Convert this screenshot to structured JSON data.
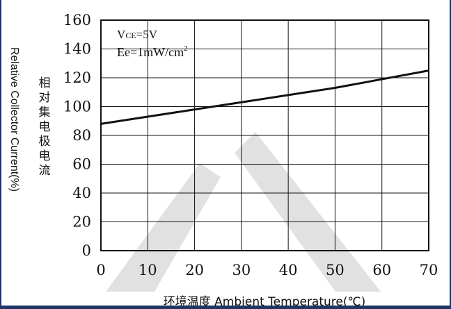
{
  "colors": {
    "frame": "#1f3566",
    "watermark": "#c9c9c9",
    "line": "#111111"
  },
  "chart_data": {
    "type": "line",
    "title": "",
    "xlabel": "环境温度 Ambient Temperature(℃)",
    "ylabel_en": "Relative Collector Current(%)",
    "ylabel_cn": "相对集电极电流",
    "xlim": [
      0,
      70
    ],
    "ylim": [
      0,
      160
    ],
    "x_ticks": [
      0,
      10,
      20,
      30,
      40,
      50,
      60,
      70
    ],
    "y_ticks": [
      0,
      20,
      40,
      60,
      80,
      100,
      120,
      140,
      160
    ],
    "grid": true,
    "annotations": {
      "vce_main": "V",
      "vce_sub": "CE",
      "vce_value": "=5V",
      "ee_main": "Ee=1mW/cm",
      "ee_sup": "2"
    },
    "series": [
      {
        "x": [
          0,
          10,
          20,
          30,
          40,
          50,
          60,
          70
        ],
        "y": [
          88,
          93,
          98,
          103,
          108,
          113,
          119,
          125
        ]
      }
    ]
  }
}
